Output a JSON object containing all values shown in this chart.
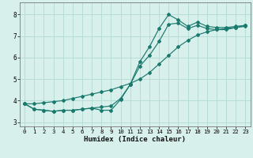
{
  "xlabel": "Humidex (Indice chaleur)",
  "bg_color": "#d8f0ec",
  "grid_color": "#b8ddd6",
  "line_color": "#1a7a6e",
  "xlim": [
    -0.5,
    23.5
  ],
  "ylim": [
    2.8,
    8.55
  ],
  "xticks": [
    0,
    1,
    2,
    3,
    4,
    5,
    6,
    7,
    8,
    9,
    10,
    11,
    12,
    13,
    14,
    15,
    16,
    17,
    18,
    19,
    20,
    21,
    22,
    23
  ],
  "yticks": [
    3,
    4,
    5,
    6,
    7,
    8
  ],
  "line1_x": [
    0,
    1,
    2,
    3,
    4,
    5,
    6,
    7,
    8,
    9,
    10,
    11,
    12,
    13,
    14,
    15,
    16,
    17,
    18,
    19,
    20,
    21,
    22,
    23
  ],
  "line1_y": [
    3.85,
    3.6,
    3.55,
    3.5,
    3.55,
    3.55,
    3.6,
    3.65,
    3.55,
    3.55,
    4.05,
    4.75,
    5.8,
    6.5,
    7.35,
    8.0,
    7.75,
    7.45,
    7.65,
    7.45,
    7.4,
    7.4,
    7.45,
    7.5
  ],
  "line2_x": [
    0,
    1,
    2,
    3,
    4,
    5,
    6,
    7,
    8,
    9,
    10,
    11,
    12,
    13,
    14,
    15,
    16,
    17,
    18,
    19,
    20,
    21,
    22,
    23
  ],
  "line2_y": [
    3.85,
    3.85,
    3.9,
    3.95,
    4.0,
    4.1,
    4.2,
    4.3,
    4.4,
    4.5,
    4.65,
    4.8,
    5.0,
    5.3,
    5.7,
    6.1,
    6.5,
    6.8,
    7.05,
    7.2,
    7.3,
    7.35,
    7.4,
    7.5
  ],
  "line3_x": [
    0,
    1,
    2,
    3,
    4,
    5,
    6,
    7,
    8,
    9,
    10,
    11,
    12,
    13,
    14,
    15,
    16,
    17,
    18,
    19,
    20,
    21,
    22,
    23
  ],
  "line3_y": [
    3.85,
    3.6,
    3.55,
    3.5,
    3.55,
    3.55,
    3.6,
    3.65,
    3.7,
    3.75,
    4.1,
    4.75,
    5.6,
    6.1,
    6.75,
    7.55,
    7.6,
    7.35,
    7.5,
    7.35,
    7.3,
    7.3,
    7.4,
    7.45
  ]
}
